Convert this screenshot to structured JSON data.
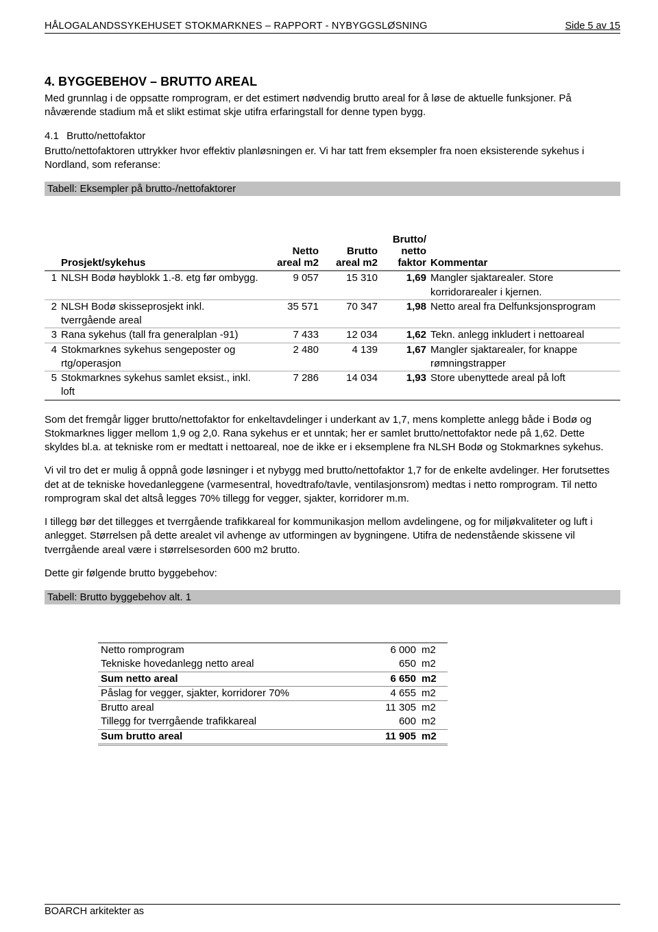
{
  "header": {
    "left": "HÅLOGALANDSSYKEHUSET STOKMARKNES – RAPPORT - NYBYGGSLØSNING",
    "right": "Side  5 av  15"
  },
  "section": {
    "number": "4.",
    "title": "BYGGEBEHOV – BRUTTO AREAL",
    "intro": "Med grunnlag i de oppsatte romprogram, er det estimert nødvendig brutto areal for å løse de aktuelle funksjoner. På nåværende stadium må et slikt estimat skje utifra erfaringstall for denne typen bygg."
  },
  "sub1": {
    "number": "4.1",
    "title": "Brutto/nettofaktor",
    "text": "Brutto/nettofaktoren uttrykker hvor effektiv planløsningen er. Vi har tatt frem eksempler fra noen eksisterende sykehus i Nordland, som referanse:"
  },
  "table1": {
    "caption": "Tabell: Eksempler på brutto-/nettofaktorer",
    "headers": {
      "project": "Prosjekt/sykehus",
      "netto_l1": "Netto",
      "netto_l2": "areal m2",
      "brutto_l1": "Brutto",
      "brutto_l2": "areal m2",
      "factor_l1": "Brutto/",
      "factor_l2": "netto",
      "factor_l3": "faktor",
      "comment": "Kommentar"
    },
    "rows": [
      {
        "n": "1",
        "project": "NLSH Bodø høyblokk 1.-8. etg før ombygg.",
        "netto": "9 057",
        "brutto": "15 310",
        "factor": "1,69",
        "comment": "Mangler sjaktarealer. Store korridorarealer i kjernen."
      },
      {
        "n": "2",
        "project": "NLSH Bodø skisseprosjekt inkl. tverrgående areal",
        "netto": "35 571",
        "brutto": "70 347",
        "factor": "1,98",
        "comment": "Netto areal fra Delfunksjonsprogram"
      },
      {
        "n": "3",
        "project": "Rana sykehus (tall fra generalplan -91)",
        "netto": "7 433",
        "brutto": "12 034",
        "factor": "1,62",
        "comment": "Tekn. anlegg inkludert i nettoareal"
      },
      {
        "n": "4",
        "project": "Stokmarknes sykehus sengeposter og rtg/operasjon",
        "netto": "2 480",
        "brutto": "4 139",
        "factor": "1,67",
        "comment": "Mangler sjaktarealer, for knappe rømningstrapper"
      },
      {
        "n": "5",
        "project": "Stokmarknes sykehus samlet eksist., inkl. loft",
        "netto": "7 286",
        "brutto": "14 034",
        "factor": "1,93",
        "comment": "Store ubenyttede areal på loft"
      }
    ]
  },
  "paras": {
    "p1": "Som det fremgår ligger brutto/nettofaktor for enkeltavdelinger i underkant av 1,7, mens komplette anlegg både i Bodø og Stokmarknes ligger mellom 1,9 og 2,0. Rana sykehus er et unntak; her er samlet brutto/nettofaktor nede på 1,62. Dette skyldes bl.a. at tekniske rom er medtatt i nettoareal, noe de ikke er i eksemplene fra NLSH Bodø og Stokmarknes sykehus.",
    "p2": "Vi vil tro det er mulig å oppnå gode løsninger i et nybygg med brutto/nettofaktor 1,7 for de enkelte avdelinger. Her forutsettes det at de tekniske hovedanleggene (varmesentral, hovedtrafo/tavle, ventilasjonsrom) medtas i netto romprogram. Til netto romprogram skal det altså legges 70% tillegg for vegger, sjakter, korridorer m.m.",
    "p3": "I tillegg bør det tillegges et tverrgående trafikkareal for kommunikasjon mellom avdelingene, og for miljøkvaliteter og luft i anlegget. Størrelsen på dette arealet vil avhenge av utformingen av bygningene. Utifra de nedenstående skissene vil tverrgående areal være i størrelsesorden 600 m2 brutto.",
    "p4": "Dette gir følgende brutto byggebehov:"
  },
  "table2": {
    "caption": "Tabell: Brutto byggebehov alt. 1",
    "rows": [
      {
        "label": "Netto romprogram",
        "val": "6 000",
        "unit": "m2",
        "cls": "t2-top"
      },
      {
        "label": "Tekniske hovedanlegg netto areal",
        "val": "650",
        "unit": "m2",
        "cls": ""
      },
      {
        "label": "Sum netto areal",
        "val": "6 650",
        "unit": "m2",
        "cls": "t2-sum"
      },
      {
        "label": "Påslag for vegger, sjakter, korridorer 70%",
        "val": "4 655",
        "unit": "m2",
        "cls": ""
      },
      {
        "label": "Brutto areal",
        "val": "11 305",
        "unit": "m2",
        "cls": "t2-midtop"
      },
      {
        "label": "Tillegg for tverrgående trafikkareal",
        "val": "600",
        "unit": "m2",
        "cls": ""
      },
      {
        "label": "Sum brutto areal",
        "val": "11 905",
        "unit": "m2",
        "cls": "t2-final"
      }
    ]
  },
  "footer": "BOARCH arkitekter as"
}
